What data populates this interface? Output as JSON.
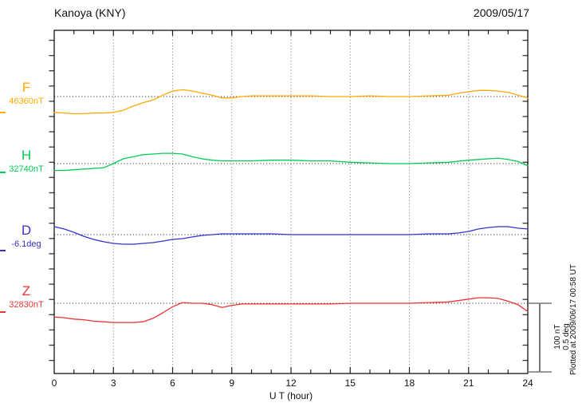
{
  "header": {
    "station_title": "Kanoya (KNY)",
    "date": "2009/05/17"
  },
  "chart_data": {
    "type": "line",
    "title": "Kanoya (KNY)",
    "date_label": "2009/05/17",
    "xlabel": "U T (hour)",
    "x_range": [
      0,
      24
    ],
    "x_major_ticks": [
      0,
      3,
      6,
      9,
      12,
      15,
      18,
      21,
      24
    ],
    "x_minor_step": 1,
    "grid": "vertical dotted at 3-hour intervals, dotted baseline per trace",
    "scale_bar": {
      "nT": 100,
      "deg": 0.5,
      "label_nT": "100 nT",
      "label_deg": "0.5 deg"
    },
    "plotted_at": "Plotted at 2009/06/17 00:58 UT",
    "series": [
      {
        "label": "F",
        "baseline_label": "46360nT",
        "baseline_value": 46360,
        "unit": "nT",
        "color": "#FFAA00",
        "points": [
          [
            0,
            -23
          ],
          [
            0.5,
            -24
          ],
          [
            1,
            -25
          ],
          [
            1.5,
            -25
          ],
          [
            2,
            -24
          ],
          [
            2.5,
            -24
          ],
          [
            3,
            -23
          ],
          [
            3.5,
            -20
          ],
          [
            4,
            -14
          ],
          [
            4.5,
            -9
          ],
          [
            5,
            -5
          ],
          [
            5.5,
            2
          ],
          [
            6,
            8
          ],
          [
            6.5,
            10
          ],
          [
            7,
            8
          ],
          [
            7.5,
            5
          ],
          [
            8,
            2
          ],
          [
            8.5,
            -2
          ],
          [
            9,
            -2
          ],
          [
            9.5,
            0
          ],
          [
            10,
            1
          ],
          [
            11,
            1
          ],
          [
            12,
            1
          ],
          [
            13,
            1
          ],
          [
            14,
            0
          ],
          [
            15,
            0
          ],
          [
            16,
            1
          ],
          [
            17,
            0
          ],
          [
            18,
            0
          ],
          [
            19,
            1
          ],
          [
            20,
            2
          ],
          [
            20.5,
            5
          ],
          [
            21,
            7
          ],
          [
            21.5,
            9
          ],
          [
            22,
            9
          ],
          [
            22.5,
            8
          ],
          [
            23,
            6
          ],
          [
            23.5,
            2
          ],
          [
            24,
            -2
          ]
        ]
      },
      {
        "label": "H",
        "baseline_label": "32740nT",
        "baseline_value": 32740,
        "unit": "nT",
        "color": "#00CC55",
        "points": [
          [
            0,
            -10
          ],
          [
            0.5,
            -10
          ],
          [
            1,
            -9
          ],
          [
            1.5,
            -8
          ],
          [
            2,
            -7
          ],
          [
            2.5,
            -6
          ],
          [
            3,
            0
          ],
          [
            3.5,
            7
          ],
          [
            4,
            10
          ],
          [
            4.5,
            13
          ],
          [
            5,
            14
          ],
          [
            5.5,
            15
          ],
          [
            6,
            15
          ],
          [
            6.5,
            14
          ],
          [
            7,
            10
          ],
          [
            7.5,
            7
          ],
          [
            8,
            5
          ],
          [
            8.5,
            4
          ],
          [
            9,
            4
          ],
          [
            10,
            4
          ],
          [
            11,
            5
          ],
          [
            12,
            5
          ],
          [
            13,
            4
          ],
          [
            14,
            4
          ],
          [
            15,
            2
          ],
          [
            16,
            1
          ],
          [
            17,
            0
          ],
          [
            18,
            0
          ],
          [
            19,
            1
          ],
          [
            20,
            2
          ],
          [
            21,
            5
          ],
          [
            21.5,
            6
          ],
          [
            22,
            7
          ],
          [
            22.5,
            8
          ],
          [
            23,
            6
          ],
          [
            23.5,
            3
          ],
          [
            24,
            -3
          ]
        ]
      },
      {
        "label": "D",
        "baseline_label": "-6.1deg",
        "baseline_value": -6.1,
        "unit": "deg",
        "color": "#3333CC",
        "points": [
          [
            0,
            0.058
          ],
          [
            0.5,
            0.041
          ],
          [
            1,
            0.017
          ],
          [
            1.5,
            -0.012
          ],
          [
            2,
            -0.035
          ],
          [
            2.5,
            -0.052
          ],
          [
            3,
            -0.064
          ],
          [
            3.5,
            -0.07
          ],
          [
            4,
            -0.07
          ],
          [
            4.5,
            -0.064
          ],
          [
            5,
            -0.058
          ],
          [
            5.5,
            -0.047
          ],
          [
            6,
            -0.035
          ],
          [
            6.5,
            -0.029
          ],
          [
            7,
            -0.017
          ],
          [
            7.5,
            -0.006
          ],
          [
            8,
            0
          ],
          [
            8.5,
            0.006
          ],
          [
            9,
            0.006
          ],
          [
            10,
            0.006
          ],
          [
            11,
            0.006
          ],
          [
            12,
            0
          ],
          [
            13,
            0
          ],
          [
            14,
            0
          ],
          [
            15,
            0
          ],
          [
            16,
            0
          ],
          [
            17,
            0
          ],
          [
            18,
            0
          ],
          [
            19,
            0.006
          ],
          [
            20,
            0.006
          ],
          [
            20.5,
            0.012
          ],
          [
            21,
            0.023
          ],
          [
            21.5,
            0.041
          ],
          [
            22,
            0.052
          ],
          [
            22.5,
            0.058
          ],
          [
            23,
            0.058
          ],
          [
            23.5,
            0.047
          ],
          [
            24,
            0.041
          ]
        ]
      },
      {
        "label": "Z",
        "baseline_label": "32830nT",
        "baseline_value": 32830,
        "unit": "nT",
        "color": "#EE3333",
        "points": [
          [
            0,
            -20
          ],
          [
            0.5,
            -21
          ],
          [
            1,
            -23
          ],
          [
            1.5,
            -24
          ],
          [
            2,
            -26
          ],
          [
            2.5,
            -27
          ],
          [
            3,
            -28
          ],
          [
            3.5,
            -28
          ],
          [
            4,
            -28
          ],
          [
            4.5,
            -27
          ],
          [
            5,
            -22
          ],
          [
            5.5,
            -14
          ],
          [
            6,
            -5
          ],
          [
            6.5,
            1
          ],
          [
            7,
            0
          ],
          [
            7.5,
            0
          ],
          [
            8,
            -2
          ],
          [
            8.5,
            -6
          ],
          [
            9,
            -3
          ],
          [
            9.5,
            -1
          ],
          [
            10,
            -1
          ],
          [
            11,
            -1
          ],
          [
            12,
            -1
          ],
          [
            13,
            -1
          ],
          [
            14,
            -1
          ],
          [
            15,
            0
          ],
          [
            16,
            0
          ],
          [
            17,
            0
          ],
          [
            18,
            0
          ],
          [
            19,
            1
          ],
          [
            20,
            2
          ],
          [
            21,
            6
          ],
          [
            21.5,
            8
          ],
          [
            22,
            8
          ],
          [
            22.5,
            7
          ],
          [
            23,
            3
          ],
          [
            23.5,
            -2
          ],
          [
            24,
            -12
          ]
        ]
      }
    ]
  }
}
